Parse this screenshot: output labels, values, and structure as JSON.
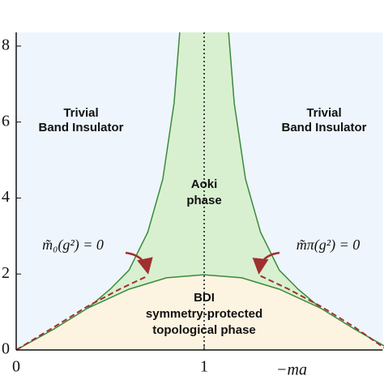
{
  "chart_data": {
    "type": "phase",
    "xlabel": "−ma",
    "xlim": [
      0,
      1.95
    ],
    "xticks": [
      0,
      1
    ],
    "ylim": [
      0,
      8.36
    ],
    "yticks": [
      0,
      2,
      4,
      6,
      8
    ],
    "background": "#eef5fc",
    "series": [
      {
        "name": "BDI",
        "color": "#3a8a3a",
        "fill": "#fdf3e1",
        "x": [
          0,
          0.2,
          0.38,
          0.6,
          0.8,
          1,
          1.2,
          1.4,
          1.62,
          1.8,
          1.96
        ],
        "values": [
          0,
          0.55,
          1.1,
          1.6,
          1.9,
          1.98,
          1.9,
          1.6,
          1.1,
          0.55,
          0.1
        ]
      },
      {
        "name": "Aoki left",
        "color": "#3a8a3a",
        "fill": "#d8f0d0",
        "x": [
          0.38,
          0.5,
          0.6,
          0.7,
          0.78,
          0.84,
          0.87
        ],
        "values": [
          1.1,
          1.6,
          2.1,
          3.1,
          4.5,
          6.5,
          8.36
        ]
      },
      {
        "name": "Aoki right",
        "color": "#3a8a3a",
        "fill": "#d8f0d0",
        "x": [
          1.62,
          1.5,
          1.4,
          1.3,
          1.22,
          1.16,
          1.13
        ],
        "values": [
          1.1,
          1.6,
          2.1,
          3.1,
          4.5,
          6.5,
          8.36
        ]
      },
      {
        "name": "m0 dashed",
        "color": "#a03030",
        "dashed": true,
        "x": [
          0,
          0.2,
          0.38,
          0.55,
          0.7
        ],
        "values": [
          0,
          0.6,
          1.15,
          1.6,
          1.95
        ]
      },
      {
        "name": "mpi dashed",
        "color": "#a03030",
        "dashed": true,
        "x": [
          1.3,
          1.45,
          1.62,
          1.8,
          1.96
        ],
        "values": [
          1.95,
          1.6,
          1.15,
          0.6,
          0.05
        ]
      }
    ],
    "labels": {
      "trivial_left": [
        "Trivial",
        "Band Insulator"
      ],
      "trivial_right": [
        "Trivial",
        "Band Insulator"
      ],
      "aoki": [
        "Aoki",
        "phase"
      ],
      "bdi": [
        "BDI",
        "symmetry-protected",
        "topological phase"
      ],
      "m0": "m̃₀(g²) = 0",
      "mpi": "m̃π(g²) = 0"
    }
  }
}
